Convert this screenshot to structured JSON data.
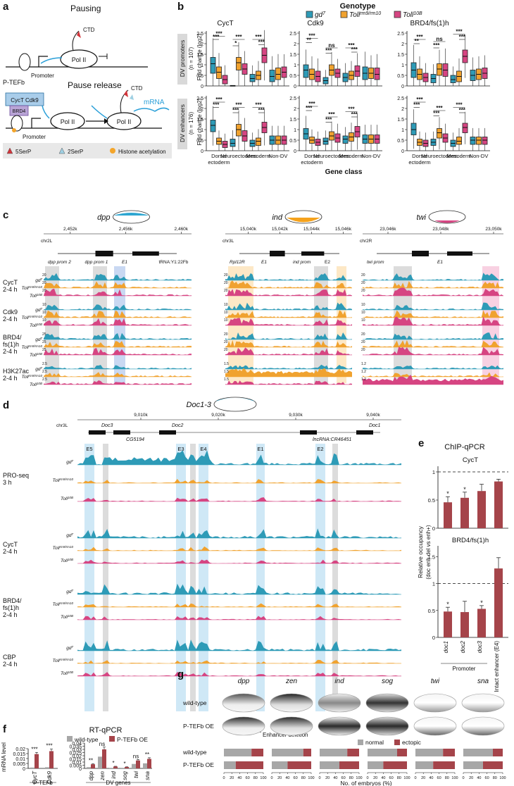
{
  "panels": {
    "a": "a",
    "b": "b",
    "c": "c",
    "d": "d",
    "e": "e",
    "f": "f",
    "g": "g"
  },
  "panel_a": {
    "pausing_title": "Pausing",
    "release_title": "Pause release",
    "ptefb": "P-TEFb",
    "cyct_cdk9": "CycT Cdk9",
    "brd4": "BRD4",
    "ctd": "CTD",
    "pol2": "Pol II",
    "promoter": "Promoter",
    "mrna": "mRNA",
    "legend": [
      "5SerP",
      "2SerP",
      "Histone acetylation"
    ],
    "colors": {
      "ptefb": "#a9cdea",
      "brd4": "#b9a4d6",
      "ser5": "#d2343a",
      "ser2": "#9fd0e3",
      "ac": "#f4a52a",
      "mrna": "#2a9fd8"
    }
  },
  "panel_b": {
    "legend_title": "Genotype",
    "genotypes": [
      {
        "base": "gd",
        "sup": "7",
        "color": "#2e9bb7"
      },
      {
        "base": "Toll",
        "sup": "rm9/rm10",
        "color": "#f0a22f"
      },
      {
        "base": "Toll",
        "sup": "10B",
        "color": "#d64582"
      }
    ],
    "columns": [
      "CycT",
      "Cdk9",
      "BRD4/fs(1)h"
    ],
    "rows": [
      {
        "label": "DV promoters",
        "n": "(n = 107)"
      },
      {
        "label": "DV enhancers",
        "n": "(n = 176)"
      }
    ],
    "ylabel": "Fold change (log2)",
    "yticks": [
      "0",
      "0.5",
      "1",
      "1.5",
      "2",
      "2.5"
    ],
    "xlabel": "Gene class",
    "categories": [
      "Dorsal ectoderm",
      "Neuroectoderm",
      "Mesoderm",
      "Non-DV"
    ],
    "boxes": [
      [
        [
          [
            0.6,
            1.05,
            1.35
          ],
          [
            0.35,
            0.65,
            0.9
          ],
          [
            0.1,
            0.3,
            0.5
          ],
          [
            0.02,
            0.02,
            0.02
          ],
          [
            0.75,
            1.1,
            1.35
          ],
          [
            0.55,
            0.8,
            1.05
          ],
          [
            0.2,
            0.35,
            0.55
          ],
          [
            0.3,
            0.5,
            0.7
          ],
          [
            1.1,
            1.45,
            1.8
          ],
          [
            0.2,
            0.45,
            0.75
          ],
          [
            0.3,
            0.55,
            0.85
          ],
          [
            0.4,
            0.65,
            0.9
          ]
        ],
        [
          [
            0.4,
            0.75,
            1.0
          ],
          [
            0.3,
            0.55,
            0.8
          ],
          [
            0.2,
            0.45,
            0.7
          ],
          [
            0.1,
            0.25,
            0.4
          ],
          [
            0.5,
            0.75,
            1.0
          ],
          [
            0.4,
            0.6,
            0.8
          ],
          [
            0.2,
            0.4,
            0.6
          ],
          [
            0.3,
            0.5,
            0.7
          ],
          [
            0.45,
            0.7,
            0.95
          ],
          [
            0.3,
            0.6,
            0.9
          ],
          [
            0.35,
            0.6,
            0.85
          ],
          [
            0.3,
            0.55,
            0.85
          ]
        ],
        [
          [
            0.4,
            0.75,
            1.1
          ],
          [
            0.3,
            0.55,
            0.8
          ],
          [
            0.2,
            0.4,
            0.6
          ],
          [
            0.15,
            0.35,
            0.55
          ],
          [
            0.5,
            0.8,
            1.05
          ],
          [
            0.45,
            0.75,
            1.05
          ],
          [
            0.15,
            0.3,
            0.5
          ],
          [
            0.2,
            0.45,
            0.7
          ],
          [
            1.1,
            1.4,
            1.7
          ],
          [
            0.25,
            0.5,
            0.75
          ],
          [
            0.3,
            0.55,
            0.8
          ],
          [
            0.35,
            0.6,
            0.85
          ]
        ]
      ],
      [
        [
          [
            0.9,
            1.2,
            1.45
          ],
          [
            0.3,
            0.45,
            0.6
          ],
          [
            0.15,
            0.3,
            0.45
          ],
          [
            0.2,
            0.35,
            0.55
          ],
          [
            0.7,
            1.0,
            1.25
          ],
          [
            0.45,
            0.7,
            0.95
          ],
          [
            0.2,
            0.35,
            0.5
          ],
          [
            0.25,
            0.45,
            0.6
          ],
          [
            0.85,
            1.1,
            1.35
          ],
          [
            0.3,
            0.5,
            0.7
          ],
          [
            0.3,
            0.5,
            0.7
          ],
          [
            0.3,
            0.5,
            0.7
          ]
        ],
        [
          [
            0.55,
            0.8,
            1.05
          ],
          [
            0.35,
            0.5,
            0.65
          ],
          [
            0.25,
            0.4,
            0.55
          ],
          [
            0.3,
            0.45,
            0.6
          ],
          [
            0.5,
            0.7,
            0.9
          ],
          [
            0.4,
            0.6,
            0.8
          ],
          [
            0.35,
            0.55,
            0.7
          ],
          [
            0.45,
            0.65,
            0.85
          ],
          [
            0.65,
            0.9,
            1.15
          ],
          [
            0.35,
            0.55,
            0.75
          ],
          [
            0.35,
            0.55,
            0.75
          ],
          [
            0.35,
            0.55,
            0.75
          ]
        ],
        [
          [
            0.75,
            1.0,
            1.3
          ],
          [
            0.25,
            0.4,
            0.55
          ],
          [
            0.2,
            0.35,
            0.5
          ],
          [
            0.25,
            0.4,
            0.55
          ],
          [
            0.6,
            0.85,
            1.05
          ],
          [
            0.4,
            0.6,
            0.8
          ],
          [
            0.2,
            0.35,
            0.5
          ],
          [
            0.3,
            0.45,
            0.65
          ],
          [
            0.85,
            1.1,
            1.3
          ],
          [
            0.3,
            0.5,
            0.65
          ],
          [
            0.3,
            0.5,
            0.65
          ],
          [
            0.3,
            0.5,
            0.65
          ]
        ]
      ]
    ],
    "sig": [
      [
        [
          [
            "***",
            0,
            2,
            2.35
          ],
          [
            "***",
            0,
            1,
            2.2
          ],
          [
            "***",
            3,
            5,
            2.2
          ],
          [
            "*",
            3,
            4,
            1.9
          ],
          [
            "***",
            6,
            8,
            2.2
          ],
          [
            "***",
            7,
            8,
            1.95
          ]
        ],
        [
          [
            "***",
            0,
            2,
            2.25
          ],
          [
            "**",
            0,
            1,
            2.05
          ],
          [
            "ns",
            3,
            5,
            1.8
          ],
          [
            "***",
            3,
            4,
            1.55
          ],
          [
            "***",
            6,
            8,
            1.8
          ],
          [
            "***",
            7,
            8,
            1.6
          ]
        ],
        [
          [
            "***",
            0,
            2,
            2.2
          ],
          [
            "**",
            0,
            1,
            2.0
          ],
          [
            "ns",
            3,
            5,
            2.1
          ],
          [
            "***",
            3,
            4,
            1.8
          ],
          [
            "***",
            6,
            8,
            2.45
          ],
          [
            "***",
            7,
            8,
            2.2
          ]
        ]
      ],
      [
        [
          [
            "***",
            0,
            2,
            2.3
          ],
          [
            "***",
            0,
            1,
            2.05
          ],
          [
            "***",
            3,
            5,
            2.05
          ],
          [
            "***",
            3,
            4,
            1.8
          ],
          [
            "***",
            6,
            8,
            2.05
          ],
          [
            "***",
            7,
            8,
            1.8
          ]
        ],
        [
          [
            "***",
            0,
            2,
            2.1
          ],
          [
            "***",
            0,
            1,
            1.9
          ],
          [
            "***",
            3,
            5,
            1.6
          ],
          [
            "***",
            3,
            4,
            1.35
          ],
          [
            "***",
            6,
            8,
            1.85
          ],
          [
            "***",
            7,
            8,
            1.6
          ]
        ],
        [
          [
            "***",
            0,
            2,
            2.3
          ],
          [
            "***",
            0,
            1,
            2.05
          ],
          [
            "***",
            3,
            5,
            1.9
          ],
          [
            "***",
            3,
            4,
            1.65
          ],
          [
            "***",
            6,
            8,
            2.05
          ],
          [
            "***",
            7,
            8,
            1.8
          ]
        ]
      ]
    ]
  },
  "panel_c": {
    "genes": [
      "dpp",
      "ind",
      "twi"
    ],
    "chroms": [
      "chr2L",
      "chr3L",
      "chr2R"
    ],
    "coord_ticks": [
      [
        "2,452k",
        "2,456k",
        "2,460k"
      ],
      [
        "15,040k",
        "15,042k",
        "15,044k",
        "15,046k"
      ],
      [
        "23,046k",
        "23,048k",
        "23,050k"
      ]
    ],
    "feature_labels": [
      [
        "dpp prom 2",
        "dpp prom 1",
        "E1",
        "tRNA:Y1:22Fb"
      ],
      [
        "Rpl12R",
        "E1",
        "ind prom",
        "E2"
      ],
      [
        "twi prom",
        "E1"
      ]
    ],
    "groups": [
      "CycT 2-4 h",
      "Cdk9 2-4 h",
      "BRD4/ fs(1)h 2-4 h",
      "H3K27ac 2-4 h"
    ],
    "track_names": [
      "gd7",
      "Tollrm9/rm10",
      "Toll10B"
    ],
    "scale_labels": [
      "20",
      "20",
      "20",
      "10",
      "10",
      "10",
      "25",
      "20",
      "20",
      "2.5",
      "1.5",
      "1.2"
    ]
  },
  "panel_d": {
    "gene": "Doc1-3",
    "chrom": "chr3L",
    "coord_ticks": [
      "9,010k",
      "9,020k",
      "9,030k",
      "9,040k"
    ],
    "feature_labels": [
      "Doc3",
      "CG5194",
      "Doc2",
      "lncRNA:CR46451",
      "Doc1"
    ],
    "region_labels": [
      "E5",
      "E3",
      "E4",
      "E1",
      "E2"
    ],
    "groups": [
      "PRO-seq 3 h",
      "CycT 2-4 h",
      "BRD4/ fs(1)h 2-4 h",
      "CBP 2-4 h"
    ],
    "deletion_label": "Enhancer deletion"
  },
  "panel_e": {
    "title": "ChIP-qPCR",
    "sub1": "CycT",
    "sub2": "BRD4/fs(1)h",
    "ylabel": "Relative occupancy",
    "ylabel2": "(doc enh del vs enh+)",
    "yticks1": [
      "0",
      "0.5",
      "1"
    ],
    "yticks2": [
      "0",
      "0.5",
      "1",
      "1.5"
    ],
    "categories": [
      "doc1",
      "doc2",
      "doc3",
      "Intact enhancer (E4)"
    ],
    "group_label": "Promoter",
    "cyct_values": [
      0.46,
      0.54,
      0.66,
      0.83
    ],
    "cyct_err": [
      0.1,
      0.1,
      0.12,
      0.04
    ],
    "brd4_values": [
      0.48,
      0.47,
      0.53,
      1.28
    ],
    "brd4_err": [
      0.08,
      0.2,
      0.06,
      0.2
    ],
    "stars1": [
      "*",
      "*",
      "",
      ""
    ],
    "stars2": [
      "*",
      "",
      "*",
      ""
    ],
    "bar_color": "#a5444a"
  },
  "panel_f": {
    "title": "RT-qPCR",
    "legend": [
      "wild-type",
      "P-TEFb OE"
    ],
    "colors": [
      "#a7a7a7",
      "#a5444a"
    ],
    "ylabel": "mRNA level",
    "yticks1": [
      "0",
      "0.005",
      "0.01",
      "0.015",
      "0.02"
    ],
    "yticks2": [
      "0",
      "0.005",
      "0.01",
      "0.015",
      "0.02",
      "0.025",
      "0.03",
      "0.035",
      "0.04"
    ],
    "group1": "P-TEFb",
    "group2": "DV genes",
    "genes1": [
      "CycT",
      "Cdk9"
    ],
    "genes2": [
      "dpp",
      "zen",
      "ind",
      "sog",
      "twi",
      "sna"
    ],
    "wt1": [
      0.0009,
      0.0012
    ],
    "oe1": [
      0.0145,
      0.0175
    ],
    "wt2": [
      0.002,
      0.0185,
      0.0008,
      0.0009,
      0.007,
      0.008
    ],
    "oe2": [
      0.0065,
      0.03,
      0.003,
      0.0022,
      0.0125,
      0.015
    ],
    "sig1": [
      "***",
      "***"
    ],
    "sig2": [
      "**",
      "ns",
      "*",
      "*",
      "ns",
      "**"
    ]
  },
  "panel_g": {
    "genes": [
      "dpp",
      "zen",
      "ind",
      "sog",
      "twi",
      "sna"
    ],
    "rows": [
      "wild-type",
      "P-TEFb OE"
    ],
    "legend": [
      "normal",
      "ectopic"
    ],
    "colors": [
      "#a7a7a7",
      "#a5444a"
    ],
    "xlabel": "No. of embryos (%)",
    "ticks": [
      "0",
      "20",
      "40",
      "60",
      "80",
      "100"
    ],
    "normal_pct": [
      [
        70,
        80,
        70,
        75,
        70,
        75
      ],
      [
        30,
        40,
        50,
        40,
        45,
        50
      ]
    ]
  }
}
